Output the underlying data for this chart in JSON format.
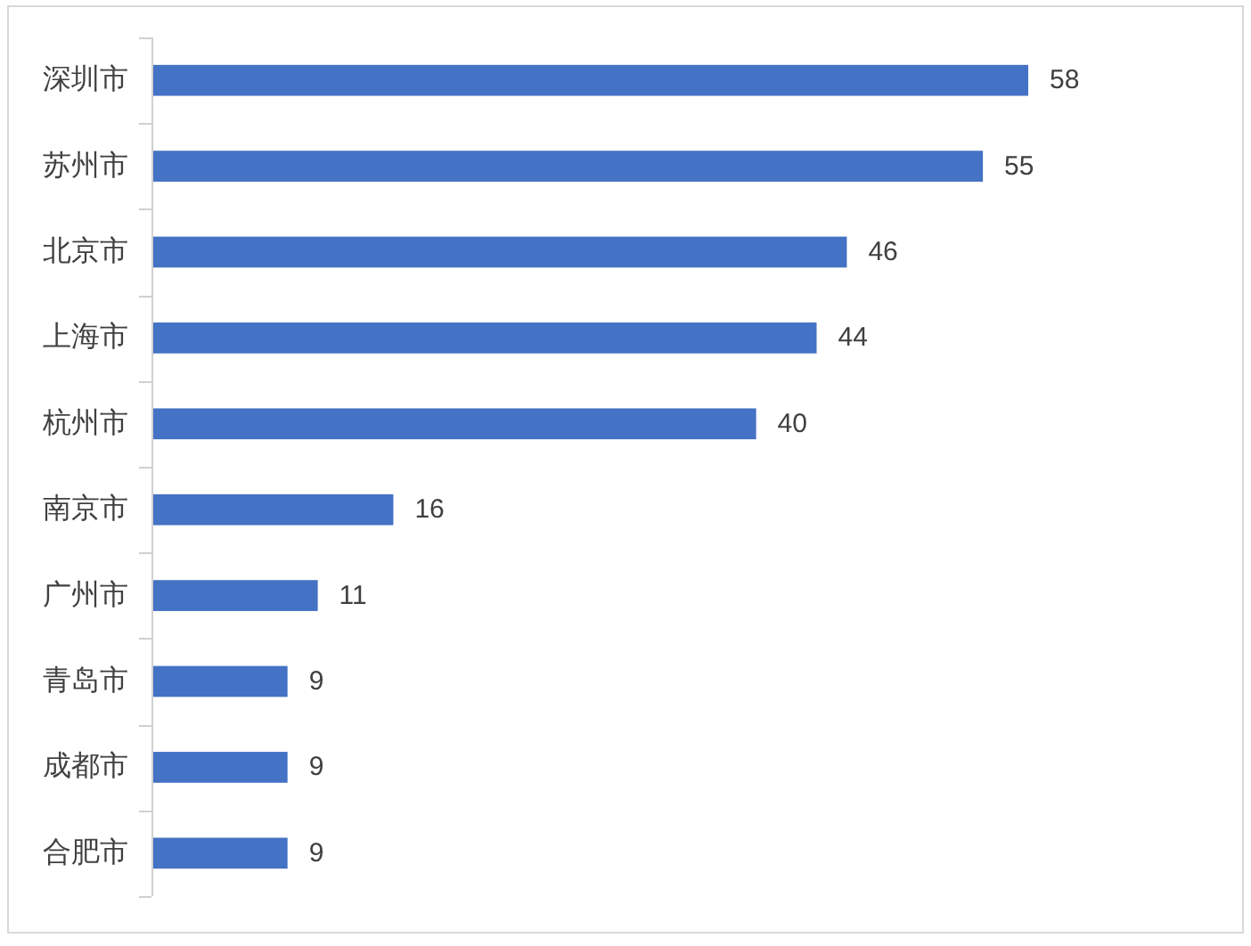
{
  "chart_data": {
    "type": "bar",
    "orientation": "horizontal",
    "categories": [
      "深圳市",
      "苏州市",
      "北京市",
      "上海市",
      "杭州市",
      "南京市",
      "广州市",
      "青岛市",
      "成都市",
      "合肥市"
    ],
    "values": [
      58,
      55,
      46,
      44,
      40,
      16,
      11,
      9,
      9,
      9
    ],
    "color": "#4472c4",
    "data_labels": true,
    "tick_labels": "y"
  }
}
